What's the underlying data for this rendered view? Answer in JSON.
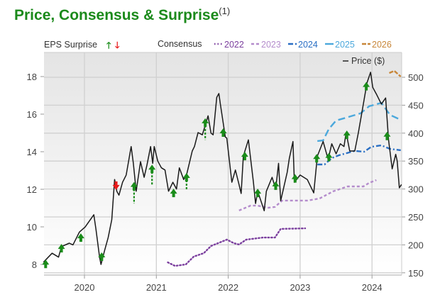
{
  "title": "Price, Consensus & Surprise",
  "title_footnote": "(1)",
  "chart_data": {
    "type": "line",
    "title": "Price, Consensus & Surprise",
    "legend": {
      "eps_surprise_label": "EPS Surprise",
      "consensus_label": "Consensus",
      "price_label": "Price ($)",
      "placement": "top"
    },
    "grid": true,
    "colors": {
      "title": "#1b8a1b",
      "price": "#1a1a1a",
      "up": "#1a8c1a",
      "down": "#e8191a",
      "2022": "#7b3f9e",
      "2023": "#b48ccc",
      "2024": "#2a6fc4",
      "2025": "#4ba8dc",
      "2026": "#c8873a"
    },
    "x_ticks": [
      "2020",
      "2021",
      "2022",
      "2023",
      "2024"
    ],
    "xlim": [
      2019.43,
      2024.42
    ],
    "left_axis": {
      "ticks": [
        "8",
        "10",
        "12",
        "14",
        "16",
        "18"
      ],
      "ylim": [
        7.5,
        18.7
      ]
    },
    "right_axis": {
      "ticks": [
        "150",
        "200",
        "250",
        "300",
        "350",
        "400",
        "450",
        "500"
      ],
      "ylim": [
        148,
        525
      ]
    },
    "price": [
      [
        2019.43,
        169
      ],
      [
        2019.55,
        185
      ],
      [
        2019.64,
        178
      ],
      [
        2019.68,
        197
      ],
      [
        2019.79,
        203
      ],
      [
        2019.84,
        200
      ],
      [
        2019.93,
        223
      ],
      [
        2020.01,
        232
      ],
      [
        2020.13,
        254
      ],
      [
        2020.16,
        228
      ],
      [
        2020.21,
        178
      ],
      [
        2020.23,
        165
      ],
      [
        2020.28,
        190
      ],
      [
        2020.33,
        213
      ],
      [
        2020.38,
        245
      ],
      [
        2020.42,
        317
      ],
      [
        2020.45,
        296
      ],
      [
        2020.48,
        289
      ],
      [
        2020.53,
        312
      ],
      [
        2020.58,
        325
      ],
      [
        2020.65,
        376
      ],
      [
        2020.68,
        346
      ],
      [
        2020.72,
        296
      ],
      [
        2020.78,
        349
      ],
      [
        2020.83,
        321
      ],
      [
        2020.87,
        343
      ],
      [
        2020.92,
        376
      ],
      [
        2020.95,
        346
      ],
      [
        2020.97,
        376
      ],
      [
        2021.02,
        350
      ],
      [
        2021.07,
        338
      ],
      [
        2021.12,
        334
      ],
      [
        2021.17,
        296
      ],
      [
        2021.23,
        312
      ],
      [
        2021.28,
        300
      ],
      [
        2021.32,
        338
      ],
      [
        2021.38,
        317
      ],
      [
        2021.42,
        325
      ],
      [
        2021.5,
        368
      ],
      [
        2021.53,
        376
      ],
      [
        2021.58,
        401
      ],
      [
        2021.64,
        397
      ],
      [
        2021.72,
        431
      ],
      [
        2021.76,
        400
      ],
      [
        2021.79,
        397
      ],
      [
        2021.84,
        464
      ],
      [
        2021.87,
        471
      ],
      [
        2021.89,
        452
      ],
      [
        2021.96,
        393
      ],
      [
        2021.98,
        391
      ],
      [
        2022.05,
        312
      ],
      [
        2022.1,
        334
      ],
      [
        2022.15,
        308
      ],
      [
        2022.18,
        292
      ],
      [
        2022.21,
        359
      ],
      [
        2022.28,
        388
      ],
      [
        2022.35,
        312
      ],
      [
        2022.38,
        274
      ],
      [
        2022.41,
        296
      ],
      [
        2022.5,
        261
      ],
      [
        2022.53,
        296
      ],
      [
        2022.61,
        321
      ],
      [
        2022.66,
        300
      ],
      [
        2022.7,
        346
      ],
      [
        2022.73,
        279
      ],
      [
        2022.76,
        296
      ],
      [
        2022.82,
        330
      ],
      [
        2022.85,
        355
      ],
      [
        2022.9,
        385
      ],
      [
        2022.92,
        312
      ],
      [
        2023.0,
        325
      ],
      [
        2023.1,
        317
      ],
      [
        2023.19,
        293
      ],
      [
        2023.24,
        359
      ],
      [
        2023.32,
        385
      ],
      [
        2023.39,
        353
      ],
      [
        2023.44,
        381
      ],
      [
        2023.5,
        363
      ],
      [
        2023.56,
        381
      ],
      [
        2023.61,
        376
      ],
      [
        2023.64,
        401
      ],
      [
        2023.69,
        368
      ],
      [
        2023.76,
        368
      ],
      [
        2023.81,
        401
      ],
      [
        2023.88,
        452
      ],
      [
        2023.93,
        490
      ],
      [
        2023.98,
        509
      ],
      [
        2024.01,
        482
      ],
      [
        2024.06,
        470
      ],
      [
        2024.13,
        452
      ],
      [
        2024.19,
        463
      ],
      [
        2024.23,
        388
      ],
      [
        2024.28,
        336
      ],
      [
        2024.33,
        362
      ],
      [
        2024.35,
        350
      ],
      [
        2024.38,
        302
      ],
      [
        2024.41,
        308
      ]
    ],
    "consensus": [
      {
        "name": "2022",
        "style": "dotted",
        "values": [
          [
            2021.16,
            8.11
          ],
          [
            2021.26,
            7.92
          ],
          [
            2021.41,
            8.0
          ],
          [
            2021.52,
            8.42
          ],
          [
            2021.66,
            8.6
          ],
          [
            2021.76,
            8.98
          ],
          [
            2021.98,
            9.32
          ],
          [
            2022.08,
            9.13
          ],
          [
            2022.15,
            9.06
          ],
          [
            2022.25,
            9.32
          ],
          [
            2022.48,
            9.43
          ],
          [
            2022.65,
            9.43
          ],
          [
            2022.73,
            9.89
          ],
          [
            2023.07,
            9.92
          ]
        ]
      },
      {
        "name": "2023",
        "style": "short-dash",
        "values": [
          [
            2022.15,
            10.87
          ],
          [
            2022.31,
            11.13
          ],
          [
            2022.41,
            11.13
          ],
          [
            2022.56,
            11.02
          ],
          [
            2022.65,
            11.06
          ],
          [
            2022.75,
            11.4
          ],
          [
            2023.1,
            11.4
          ],
          [
            2023.27,
            11.51
          ],
          [
            2023.46,
            11.89
          ],
          [
            2023.66,
            12.15
          ],
          [
            2023.88,
            12.15
          ],
          [
            2023.96,
            12.34
          ],
          [
            2024.06,
            12.49
          ]
        ]
      },
      {
        "name": "2024",
        "style": "dash-dot",
        "values": [
          [
            2023.24,
            13.32
          ],
          [
            2023.34,
            13.32
          ],
          [
            2023.44,
            13.66
          ],
          [
            2023.54,
            13.81
          ],
          [
            2023.76,
            14.04
          ],
          [
            2023.89,
            14.0
          ],
          [
            2023.99,
            14.26
          ],
          [
            2024.13,
            14.34
          ],
          [
            2024.25,
            14.15
          ],
          [
            2024.4,
            14.08
          ]
        ]
      },
      {
        "name": "2025",
        "style": "long-dash",
        "values": [
          [
            2023.24,
            14.57
          ],
          [
            2023.32,
            14.6
          ],
          [
            2023.4,
            15.21
          ],
          [
            2023.5,
            15.66
          ],
          [
            2023.64,
            15.81
          ],
          [
            2023.84,
            16.04
          ],
          [
            2023.96,
            16.42
          ],
          [
            2024.13,
            16.6
          ],
          [
            2024.25,
            15.96
          ],
          [
            2024.4,
            15.7
          ]
        ]
      },
      {
        "name": "2026",
        "style": "solid",
        "values": [
          [
            2024.24,
            18.19
          ],
          [
            2024.31,
            18.3
          ],
          [
            2024.4,
            18.0
          ]
        ]
      }
    ],
    "surprises": [
      {
        "x": 2019.46,
        "price": 166,
        "dir": "up"
      },
      {
        "x": 2019.68,
        "price": 194,
        "dir": "up"
      },
      {
        "x": 2019.95,
        "price": 213,
        "dir": "up"
      },
      {
        "x": 2020.24,
        "price": 179,
        "dir": "up"
      },
      {
        "x": 2020.44,
        "price": 306,
        "dir": "down"
      },
      {
        "x": 2020.69,
        "price": 305,
        "dir": "up",
        "tail_to": 274
      },
      {
        "x": 2020.94,
        "price": 336,
        "dir": "up",
        "tail_to": 306
      },
      {
        "x": 2021.24,
        "price": 293,
        "dir": "up"
      },
      {
        "x": 2021.42,
        "price": 321,
        "dir": "up",
        "tail_to": 298
      },
      {
        "x": 2021.68,
        "price": 419,
        "dir": "up",
        "tail_to": 388
      },
      {
        "x": 2021.93,
        "price": 401,
        "dir": "up"
      },
      {
        "x": 2022.23,
        "price": 359,
        "dir": "up"
      },
      {
        "x": 2022.41,
        "price": 293,
        "dir": "up"
      },
      {
        "x": 2022.66,
        "price": 306,
        "dir": "up",
        "tail_to": 300
      },
      {
        "x": 2022.93,
        "price": 319,
        "dir": "up"
      },
      {
        "x": 2023.23,
        "price": 355,
        "dir": "up"
      },
      {
        "x": 2023.4,
        "price": 357,
        "dir": "up"
      },
      {
        "x": 2023.65,
        "price": 397,
        "dir": "up"
      },
      {
        "x": 2023.92,
        "price": 484,
        "dir": "up"
      },
      {
        "x": 2024.21,
        "price": 395,
        "dir": "up"
      }
    ]
  }
}
